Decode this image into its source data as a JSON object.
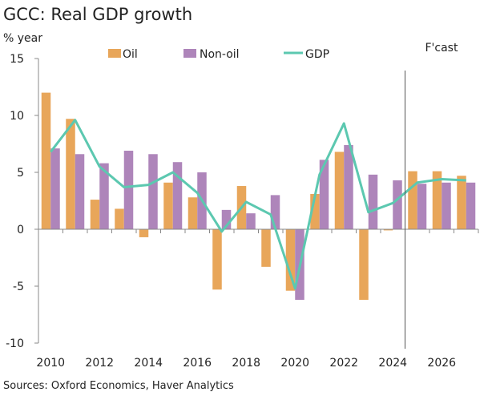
{
  "title": "GCC: Real GDP growth",
  "source": "Sources: Oxford Economics, Haver Analytics",
  "chart_data": {
    "type": "bar",
    "title": "GCC: Real GDP growth",
    "ylabel": "% year",
    "xlabel": "",
    "ylim": [
      -10,
      15
    ],
    "yticks": [
      -10,
      -5,
      0,
      5,
      10,
      15
    ],
    "x": [
      2010,
      2011,
      2012,
      2013,
      2014,
      2015,
      2016,
      2017,
      2018,
      2019,
      2020,
      2021,
      2022,
      2023,
      2024,
      2025,
      2026,
      2027
    ],
    "xtick_labels": [
      "2010",
      "2012",
      "2014",
      "2016",
      "2018",
      "2020",
      "2022",
      "2024",
      "2026"
    ],
    "forecast_label": "F'cast",
    "forecast_start": 2025,
    "legend_position": "top",
    "grid": false,
    "series": [
      {
        "name": "Oil",
        "kind": "bar",
        "color": "#E8A65A",
        "values": [
          12.0,
          9.7,
          2.6,
          1.8,
          -0.7,
          4.1,
          2.8,
          -5.3,
          3.8,
          -3.3,
          -5.4,
          3.1,
          6.8,
          -6.2,
          -0.1,
          5.1,
          5.1,
          4.7
        ]
      },
      {
        "name": "Non-oil",
        "kind": "bar",
        "color": "#AE85BA",
        "values": [
          7.1,
          6.6,
          5.8,
          6.9,
          6.6,
          5.9,
          5.0,
          1.7,
          1.4,
          3.0,
          -6.2,
          6.1,
          7.4,
          4.8,
          4.3,
          4.0,
          4.1,
          4.1
        ]
      },
      {
        "name": "GDP",
        "kind": "line",
        "color": "#5CC8B0",
        "values": [
          6.8,
          9.6,
          5.5,
          3.7,
          3.9,
          5.0,
          3.2,
          -0.2,
          2.4,
          1.3,
          -5.2,
          4.8,
          9.3,
          1.5,
          2.3,
          4.1,
          4.4,
          4.3
        ]
      }
    ]
  }
}
